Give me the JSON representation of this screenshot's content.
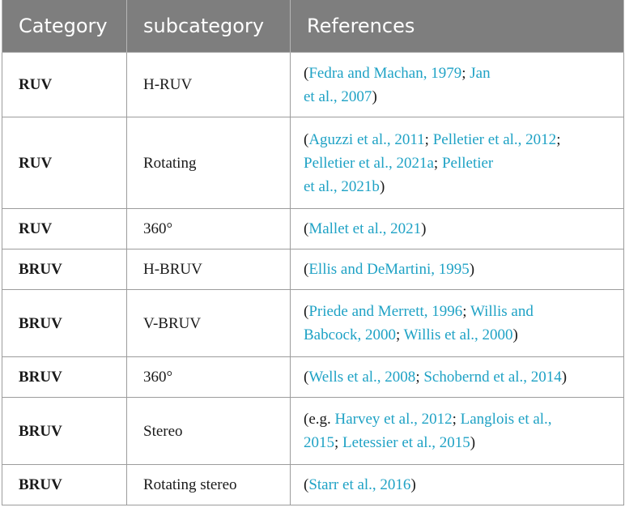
{
  "header": {
    "col1": "Category",
    "col2": "subcategory",
    "col3": "References"
  },
  "rows": [
    {
      "category": "RUV",
      "subcategory": "H-RUV",
      "references": [
        {
          "t": "(",
          "link": false
        },
        {
          "t": "Fedra and Machan, 1979",
          "link": true
        },
        {
          "t": "; ",
          "link": false
        },
        {
          "t": "Jan",
          "link": true
        },
        {
          "t": "\n",
          "link": false
        },
        {
          "t": "et al., 2007",
          "link": true
        },
        {
          "t": ")",
          "link": false
        }
      ]
    },
    {
      "category": "RUV",
      "subcategory": "Rotating",
      "references": [
        {
          "t": "(",
          "link": false
        },
        {
          "t": "Aguzzi et al., 2011",
          "link": true
        },
        {
          "t": "; ",
          "link": false
        },
        {
          "t": "Pelletier et al., 2012",
          "link": true
        },
        {
          "t": ";",
          "link": false
        },
        {
          "t": "\n",
          "link": false
        },
        {
          "t": "Pelletier et al., 2021a",
          "link": true
        },
        {
          "t": "; ",
          "link": false
        },
        {
          "t": "Pelletier",
          "link": true
        },
        {
          "t": "\n",
          "link": false
        },
        {
          "t": "et al., 2021b",
          "link": true
        },
        {
          "t": ")",
          "link": false
        }
      ]
    },
    {
      "category": "RUV",
      "subcategory": "360°",
      "references": [
        {
          "t": "(",
          "link": false
        },
        {
          "t": "Mallet et al., 2021",
          "link": true
        },
        {
          "t": ")",
          "link": false
        }
      ]
    },
    {
      "category": "BRUV",
      "subcategory": "H-BRUV",
      "references": [
        {
          "t": "(",
          "link": false
        },
        {
          "t": "Ellis and DeMartini, 1995",
          "link": true
        },
        {
          "t": ")",
          "link": false
        }
      ]
    },
    {
      "category": "BRUV",
      "subcategory": "V-BRUV",
      "references": [
        {
          "t": "(",
          "link": false
        },
        {
          "t": "Priede and Merrett, 1996",
          "link": true
        },
        {
          "t": "; ",
          "link": false
        },
        {
          "t": "Willis and",
          "link": true
        },
        {
          "t": "\n",
          "link": false
        },
        {
          "t": "Babcock, 2000",
          "link": true
        },
        {
          "t": "; ",
          "link": false
        },
        {
          "t": "Willis et al., 2000",
          "link": true
        },
        {
          "t": ")",
          "link": false
        }
      ]
    },
    {
      "category": "BRUV",
      "subcategory": "360°",
      "references": [
        {
          "t": "(",
          "link": false
        },
        {
          "t": "Wells et al., 2008",
          "link": true
        },
        {
          "t": "; ",
          "link": false
        },
        {
          "t": "Schobernd et al., 2014",
          "link": true
        },
        {
          "t": ")",
          "link": false
        }
      ]
    },
    {
      "category": "BRUV",
      "subcategory": "Stereo",
      "references": [
        {
          "t": "(e.g. ",
          "link": false
        },
        {
          "t": "Harvey et al., 2012",
          "link": true
        },
        {
          "t": "; ",
          "link": false
        },
        {
          "t": "Langlois et al.,",
          "link": true
        },
        {
          "t": "\n",
          "link": false
        },
        {
          "t": "2015",
          "link": true
        },
        {
          "t": "; ",
          "link": false
        },
        {
          "t": "Letessier et al., 2015",
          "link": true
        },
        {
          "t": ")",
          "link": false
        }
      ]
    },
    {
      "category": "BRUV",
      "subcategory": "Rotating stereo",
      "references": [
        {
          "t": "(",
          "link": false
        },
        {
          "t": "Starr et al., 2016",
          "link": true
        },
        {
          "t": ")",
          "link": false
        }
      ]
    }
  ]
}
